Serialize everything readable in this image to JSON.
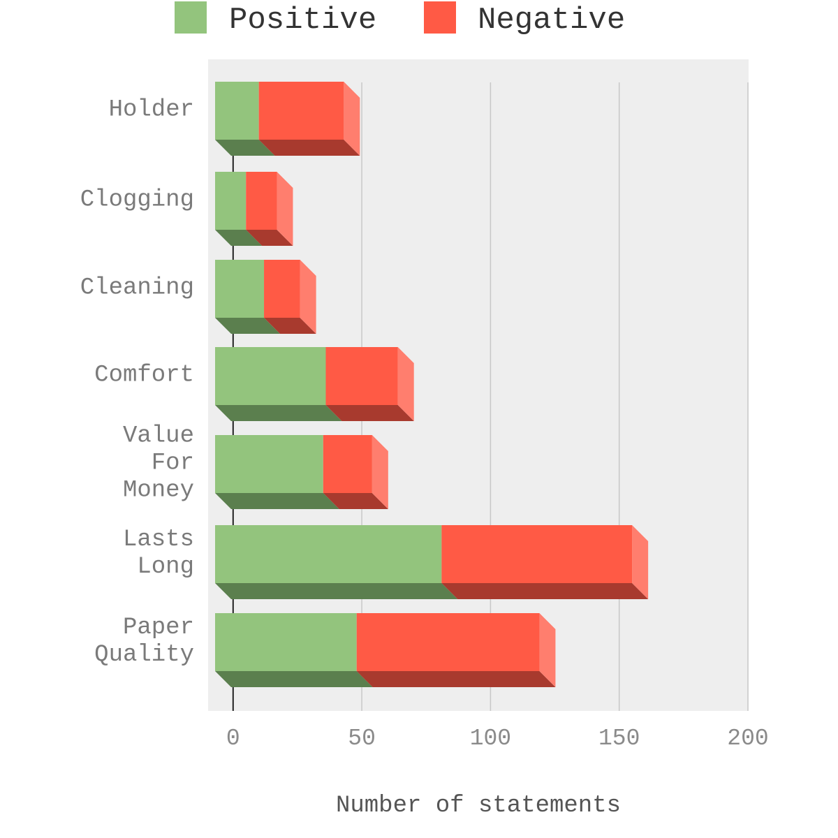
{
  "legend": {
    "positive_label": "Positive",
    "negative_label": "Negative"
  },
  "colors": {
    "positive": "#93c47d",
    "positive_dark": "#5b7f4e",
    "negative": "#ff5a45",
    "negative_dark": "#a83a2e",
    "negative_side": "#ff7e6e",
    "plot_background": "#eeeeee",
    "gridline": "#c8c8c8"
  },
  "chart_data": {
    "type": "bar",
    "orientation": "horizontal",
    "stacked": true,
    "style": "3d",
    "categories": [
      [
        "Holder"
      ],
      [
        "Clogging"
      ],
      [
        "Cleaning"
      ],
      [
        "Comfort"
      ],
      [
        "Value",
        "For",
        "Money"
      ],
      [
        "Lasts",
        "Long"
      ],
      [
        "Paper",
        "Quality"
      ]
    ],
    "series": [
      {
        "name": "Positive",
        "values": [
          10,
          5,
          12,
          36,
          35,
          81,
          48
        ]
      },
      {
        "name": "Negative",
        "values": [
          33,
          12,
          14,
          28,
          19,
          74,
          71
        ]
      }
    ],
    "xlabel": "Number of statements",
    "xlim": [
      -7,
      200
    ],
    "xticks": [
      "0",
      "50",
      "100",
      "150",
      "200"
    ],
    "xtick_values": [
      0,
      50,
      100,
      150,
      200
    ],
    "grid": true,
    "legend_position": "top"
  }
}
